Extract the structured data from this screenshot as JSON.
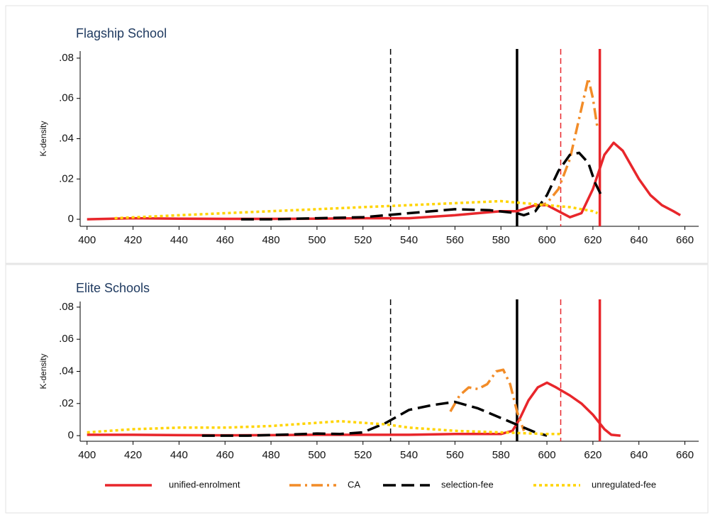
{
  "chart_data": [
    {
      "type": "line",
      "title": "Flagship School",
      "ylabel": "K-density",
      "xlim": [
        397,
        666
      ],
      "ylim": [
        -0.0035,
        0.0835
      ],
      "xticks": [
        400,
        420,
        440,
        460,
        480,
        500,
        520,
        540,
        560,
        580,
        600,
        620,
        640,
        660
      ],
      "yticks": [
        0,
        {
          "value": 0.02,
          "label": ".02"
        },
        {
          "value": 0.04,
          "label": ".04"
        },
        {
          "value": 0.06,
          "label": ".06"
        },
        {
          "value": 0.08,
          "label": ".08"
        }
      ],
      "vlines": [
        {
          "x": 532,
          "color": "#000000",
          "style": "dashed"
        },
        {
          "x": 587,
          "color": "#000000",
          "style": "solid"
        },
        {
          "x": 606,
          "color": "#e8262b",
          "style": "dashed"
        },
        {
          "x": 623,
          "color": "#e8262b",
          "style": "solid"
        }
      ],
      "series": [
        {
          "name": "unified-enrolment",
          "color": "#e8262b",
          "style": "solid",
          "x": [
            400,
            420,
            440,
            460,
            480,
            500,
            520,
            540,
            560,
            570,
            580,
            587,
            595,
            600,
            605,
            610,
            615,
            620,
            625,
            629,
            633,
            640,
            645,
            650,
            655,
            658
          ],
          "values": [
            0,
            0.0005,
            0.0003,
            0.0002,
            0.0002,
            0.0003,
            0.0005,
            0.0005,
            0.002,
            0.003,
            0.004,
            0.004,
            0.007,
            0.007,
            0.004,
            0.001,
            0.003,
            0.015,
            0.032,
            0.038,
            0.034,
            0.02,
            0.012,
            0.007,
            0.004,
            0.002
          ]
        },
        {
          "name": "CA",
          "color": "#f28c28",
          "style": "dash-dot",
          "x": [
            595,
            600,
            605,
            610,
            615,
            618,
            620,
            622
          ],
          "values": [
            0.006,
            0.008,
            0.015,
            0.03,
            0.055,
            0.07,
            0.06,
            0.045
          ]
        },
        {
          "name": "selection-fee",
          "color": "#000000",
          "style": "long-dash",
          "x": [
            467,
            480,
            500,
            520,
            540,
            560,
            575,
            587,
            590,
            595,
            600,
            605,
            610,
            614,
            618,
            621,
            624
          ],
          "values": [
            0,
            0,
            0.0005,
            0.001,
            0.003,
            0.005,
            0.0045,
            0.003,
            0.002,
            0.004,
            0.012,
            0.024,
            0.032,
            0.033,
            0.028,
            0.018,
            0.011
          ]
        },
        {
          "name": "unregulated-fee",
          "color": "#ffd400",
          "style": "dotted",
          "x": [
            412,
            440,
            460,
            480,
            500,
            520,
            540,
            560,
            580,
            590,
            600,
            610,
            620,
            622
          ],
          "values": [
            0.0005,
            0.002,
            0.003,
            0.004,
            0.005,
            0.006,
            0.007,
            0.008,
            0.009,
            0.008,
            0.007,
            0.006,
            0.004,
            0.003
          ]
        }
      ]
    },
    {
      "type": "line",
      "title": "Elite Schools",
      "ylabel": "K-density",
      "xlim": [
        397,
        666
      ],
      "ylim": [
        -0.0035,
        0.0835
      ],
      "xticks": [
        400,
        420,
        440,
        460,
        480,
        500,
        520,
        540,
        560,
        580,
        600,
        620,
        640,
        660
      ],
      "yticks": [
        0,
        {
          "value": 0.02,
          "label": ".02"
        },
        {
          "value": 0.04,
          "label": ".04"
        },
        {
          "value": 0.06,
          "label": ".06"
        },
        {
          "value": 0.08,
          "label": ".08"
        }
      ],
      "vlines": [
        {
          "x": 532,
          "color": "#000000",
          "style": "dashed"
        },
        {
          "x": 587,
          "color": "#000000",
          "style": "solid"
        },
        {
          "x": 606,
          "color": "#e8262b",
          "style": "dashed"
        },
        {
          "x": 623,
          "color": "#e8262b",
          "style": "solid"
        }
      ],
      "series": [
        {
          "color": "#e8262b",
          "style": "solid",
          "x": [
            400,
            420,
            440,
            460,
            480,
            500,
            520,
            540,
            560,
            580,
            585,
            588,
            592,
            596,
            600,
            604,
            610,
            615,
            620,
            625,
            628,
            632
          ],
          "values": [
            0.0005,
            0.0005,
            0.0003,
            0.0002,
            0.0003,
            0.0005,
            0.0005,
            0.0005,
            0.001,
            0.001,
            0.003,
            0.01,
            0.022,
            0.03,
            0.033,
            0.03,
            0.025,
            0.02,
            0.013,
            0.004,
            0.0005,
            0
          ]
        },
        {
          "color": "#f28c28",
          "style": "dash-dot",
          "x": [
            558,
            562,
            566,
            570,
            574,
            578,
            581,
            584,
            587,
            590
          ],
          "values": [
            0.015,
            0.025,
            0.03,
            0.029,
            0.032,
            0.04,
            0.041,
            0.032,
            0.015,
            0.003
          ]
        },
        {
          "color": "#000000",
          "style": "long-dash",
          "x": [
            450,
            470,
            490,
            500,
            510,
            520,
            530,
            540,
            550,
            560,
            570,
            580,
            590,
            595,
            600
          ],
          "values": [
            0,
            0,
            0.0008,
            0.0013,
            0.001,
            0.002,
            0.008,
            0.016,
            0.019,
            0.021,
            0.017,
            0.011,
            0.005,
            0.002,
            0
          ]
        },
        {
          "color": "#ffd400",
          "style": "dotted",
          "x": [
            400,
            420,
            440,
            460,
            480,
            500,
            510,
            520,
            530,
            540,
            560,
            580,
            600,
            606
          ],
          "values": [
            0.002,
            0.004,
            0.005,
            0.005,
            0.006,
            0.008,
            0.009,
            0.008,
            0.007,
            0.005,
            0.003,
            0.002,
            0.001,
            0.001
          ]
        }
      ]
    }
  ]
}
